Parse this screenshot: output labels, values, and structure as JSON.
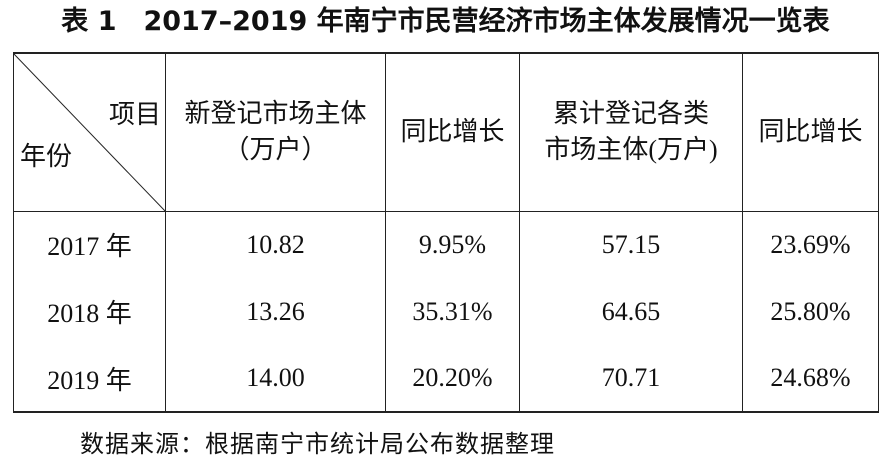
{
  "title": "表 1　2017–2019 年南宁市民营经济市场主体发展情况一览表",
  "table": {
    "corner": {
      "top": "项目",
      "bottom": "年份"
    },
    "columns": [
      [
        "新登记市场主体",
        "（万户）"
      ],
      [
        "同比增长"
      ],
      [
        "累计登记各类",
        "市场主体(万户)"
      ],
      [
        "同比增长"
      ]
    ],
    "rows": [
      [
        "2017 年",
        "10.82",
        "9.95%",
        "57.15",
        "23.69%"
      ],
      [
        "2018 年",
        "13.26",
        "35.31%",
        "64.65",
        "25.80%"
      ],
      [
        "2019 年",
        "14.00",
        "20.20%",
        "70.71",
        "24.68%"
      ]
    ]
  },
  "source": "数据来源：根据南宁市统计局公布数据整理"
}
